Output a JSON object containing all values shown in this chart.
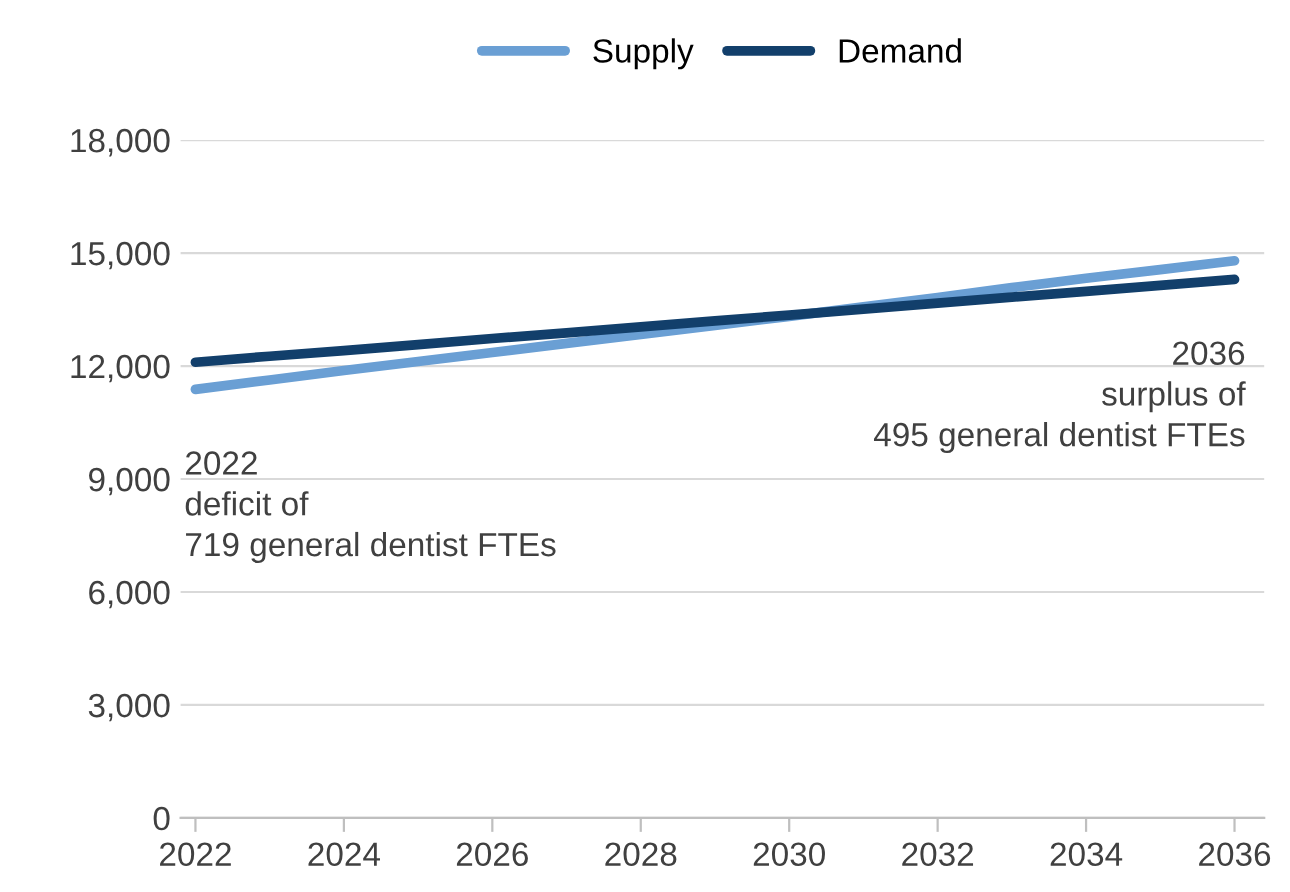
{
  "chart_data": {
    "type": "line",
    "x": [
      2022,
      2023,
      2024,
      2025,
      2026,
      2027,
      2028,
      2029,
      2030,
      2031,
      2032,
      2033,
      2034,
      2035,
      2036
    ],
    "series": [
      {
        "name": "Supply",
        "color": "#6a9fd4",
        "values": [
          11381,
          11630,
          11880,
          12120,
          12360,
          12600,
          12840,
          13080,
          13320,
          13570,
          13820,
          14080,
          14330,
          14560,
          14795
        ]
      },
      {
        "name": "Demand",
        "color": "#123f6b",
        "values": [
          12100,
          12260,
          12410,
          12570,
          12730,
          12880,
          13040,
          13200,
          13350,
          13510,
          13670,
          13830,
          13980,
          14140,
          14300
        ]
      }
    ],
    "xlim": [
      2021.8,
      2036.4
    ],
    "xticks": [
      2022,
      2024,
      2026,
      2028,
      2030,
      2032,
      2034,
      2036
    ],
    "ylim": [
      0,
      18000
    ],
    "yticks": [
      0,
      {
        "value": 3000,
        "label": "3,000"
      },
      {
        "value": 6000,
        "label": "6,000"
      },
      {
        "value": 9000,
        "label": "9,000"
      },
      {
        "value": 12000,
        "label": "12,000"
      },
      {
        "value": 15000,
        "label": "15,000"
      },
      {
        "value": 18000,
        "label": "18,000"
      }
    ],
    "grid": "y",
    "legend": "top",
    "marker": "none",
    "line_style": "solid",
    "annotations": [
      {
        "text": "2022\ndeficit of\n719 general dentist FTEs",
        "x": 2022,
        "y": 11381
      },
      {
        "text": "2036\nsurplus of\n495 general dentist FTEs",
        "x": 2036,
        "y": 14300
      }
    ]
  }
}
